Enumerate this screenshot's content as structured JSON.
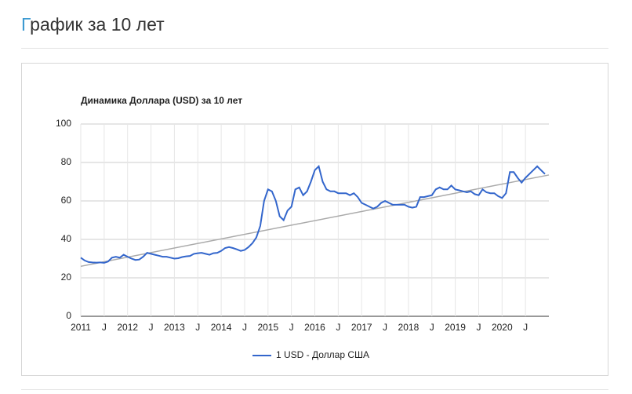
{
  "header": {
    "title": "График за 10 лет"
  },
  "chart_data": {
    "type": "line",
    "title": "Динамика Доллара (USD) за 10 лет",
    "x": [
      "2011-01",
      "2011-02",
      "2011-03",
      "2011-04",
      "2011-05",
      "2011-06",
      "2011-07",
      "2011-08",
      "2011-09",
      "2011-10",
      "2011-11",
      "2011-12",
      "2012-01",
      "2012-02",
      "2012-03",
      "2012-04",
      "2012-05",
      "2012-06",
      "2012-07",
      "2012-08",
      "2012-09",
      "2012-10",
      "2012-11",
      "2012-12",
      "2013-01",
      "2013-02",
      "2013-03",
      "2013-04",
      "2013-05",
      "2013-06",
      "2013-07",
      "2013-08",
      "2013-09",
      "2013-10",
      "2013-11",
      "2013-12",
      "2014-01",
      "2014-02",
      "2014-03",
      "2014-04",
      "2014-05",
      "2014-06",
      "2014-07",
      "2014-08",
      "2014-09",
      "2014-10",
      "2014-11",
      "2014-12",
      "2015-01",
      "2015-02",
      "2015-03",
      "2015-04",
      "2015-05",
      "2015-06",
      "2015-07",
      "2015-08",
      "2015-09",
      "2015-10",
      "2015-11",
      "2015-12",
      "2016-01",
      "2016-02",
      "2016-03",
      "2016-04",
      "2016-05",
      "2016-06",
      "2016-07",
      "2016-08",
      "2016-09",
      "2016-10",
      "2016-11",
      "2016-12",
      "2017-01",
      "2017-02",
      "2017-03",
      "2017-04",
      "2017-05",
      "2017-06",
      "2017-07",
      "2017-08",
      "2017-09",
      "2017-10",
      "2017-11",
      "2017-12",
      "2018-01",
      "2018-02",
      "2018-03",
      "2018-04",
      "2018-05",
      "2018-06",
      "2018-07",
      "2018-08",
      "2018-09",
      "2018-10",
      "2018-11",
      "2018-12",
      "2019-01",
      "2019-02",
      "2019-03",
      "2019-04",
      "2019-05",
      "2019-06",
      "2019-07",
      "2019-08",
      "2019-09",
      "2019-10",
      "2019-11",
      "2019-12",
      "2020-01",
      "2020-02",
      "2020-03",
      "2020-04",
      "2020-05",
      "2020-06",
      "2020-07",
      "2020-08",
      "2020-09",
      "2020-10",
      "2020-11",
      "2020-12"
    ],
    "series": [
      {
        "name": "1 USD - Доллар США",
        "color": "#3366cc",
        "values": [
          30.5,
          29,
          28.2,
          28,
          27.9,
          28,
          27.8,
          28.5,
          30.5,
          31,
          30.5,
          32,
          31,
          30,
          29.3,
          29.5,
          31,
          33,
          32.5,
          32,
          31.5,
          31,
          31,
          30.5,
          30,
          30.2,
          30.8,
          31.2,
          31.4,
          32.5,
          32.8,
          33,
          32.5,
          32,
          32.8,
          33,
          34,
          35.5,
          36,
          35.5,
          34.8,
          34,
          34.5,
          36,
          38,
          41,
          47,
          60,
          66,
          65,
          60,
          52,
          50,
          55,
          57,
          66,
          67,
          63,
          65,
          70,
          76,
          78,
          70,
          66,
          65,
          65,
          64,
          64,
          64,
          63,
          64,
          62,
          59,
          58,
          57,
          56,
          57,
          59,
          60,
          59,
          58,
          58,
          58,
          58,
          57,
          56.5,
          57,
          62,
          62,
          62.5,
          63,
          66,
          67,
          66,
          66,
          68,
          66,
          65.5,
          65,
          64.5,
          65,
          63.5,
          63,
          66,
          64.5,
          64,
          64,
          62.5,
          61.5,
          64,
          75,
          75,
          72,
          69.5,
          72,
          74,
          76,
          78,
          76,
          74
        ]
      }
    ],
    "trendline": {
      "color": "#aaaaaa",
      "y": [
        26,
        73.5
      ]
    },
    "xlim": [
      "2011-01",
      "2020-12"
    ],
    "xticks": [
      {
        "value": "2011-01",
        "label": "2011"
      },
      {
        "value": "2011-07",
        "label": "J"
      },
      {
        "value": "2012-01",
        "label": "2012"
      },
      {
        "value": "2012-07",
        "label": "J"
      },
      {
        "value": "2013-01",
        "label": "2013"
      },
      {
        "value": "2013-07",
        "label": "J"
      },
      {
        "value": "2014-01",
        "label": "2014"
      },
      {
        "value": "2014-07",
        "label": "J"
      },
      {
        "value": "2015-01",
        "label": "2015"
      },
      {
        "value": "2015-07",
        "label": "J"
      },
      {
        "value": "2016-01",
        "label": "2016"
      },
      {
        "value": "2016-07",
        "label": "J"
      },
      {
        "value": "2017-01",
        "label": "2017"
      },
      {
        "value": "2017-07",
        "label": "J"
      },
      {
        "value": "2018-01",
        "label": "2018"
      },
      {
        "value": "2018-07",
        "label": "J"
      },
      {
        "value": "2019-01",
        "label": "2019"
      },
      {
        "value": "2019-07",
        "label": "J"
      },
      {
        "value": "2020-01",
        "label": "2020"
      },
      {
        "value": "2020-07",
        "label": "J"
      }
    ],
    "ylim": [
      0,
      100
    ],
    "yticks": [
      0,
      20,
      40,
      60,
      80,
      100
    ],
    "grid": true,
    "legend": "bottom"
  }
}
